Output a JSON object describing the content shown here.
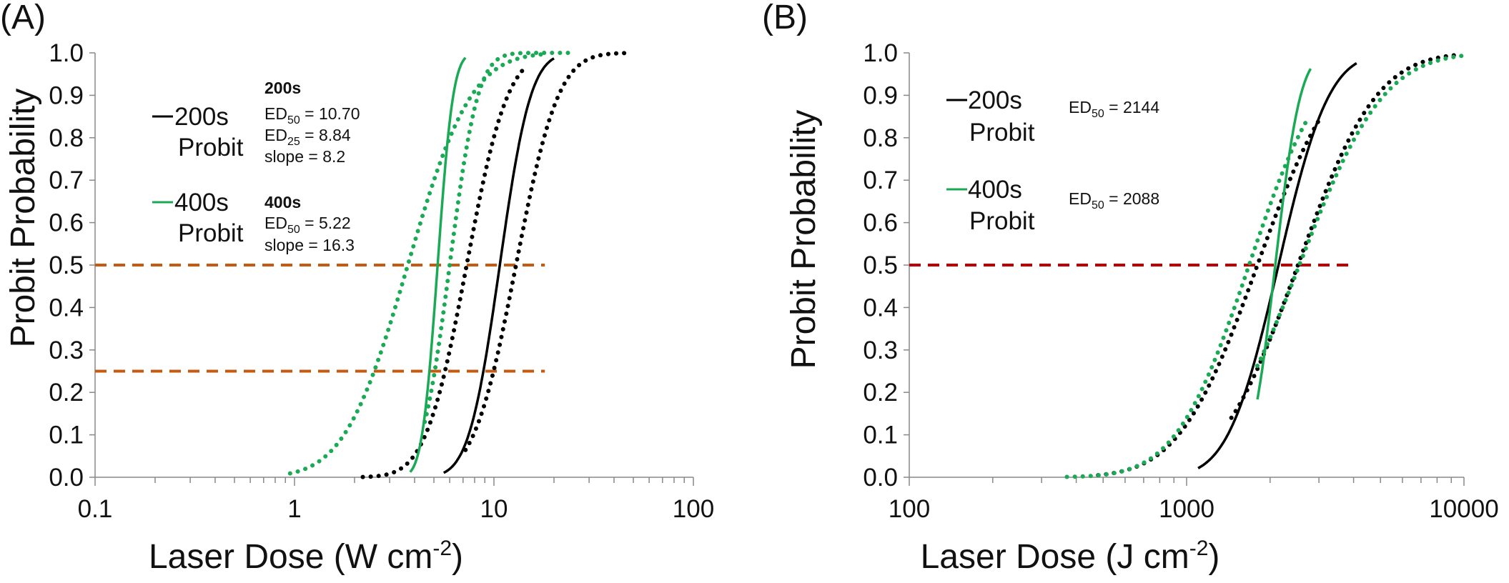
{
  "chart_data": [
    {
      "type": "line",
      "panel_label": "(A)",
      "xscale": "log",
      "xlim": [
        0.1,
        100
      ],
      "ylim": [
        0.0,
        1.0
      ],
      "xticks": [
        "0.1",
        "1",
        "10",
        "100"
      ],
      "yticks": [
        "0.0",
        "0.1",
        "0.2",
        "0.3",
        "0.4",
        "0.5",
        "0.6",
        "0.7",
        "0.8",
        "0.9",
        "1.0"
      ],
      "xlabel": "Laser Dose (W cm",
      "xlabel_sup": "-2",
      "xlabel_end": ")",
      "ylabel": "Probit Probability",
      "legend": [
        {
          "label": "200s",
          "label2": "Probit",
          "color": "#000000"
        },
        {
          "label": "400s",
          "label2": "Probit",
          "color": "#1aaa55"
        }
      ],
      "stats": {
        "group200": {
          "title": "200s",
          "ed50": {
            "pre": "ED",
            "sub": "50",
            "post": " = 10.70"
          },
          "ed25": {
            "pre": "ED",
            "sub": "25",
            "post": " =   8.84"
          },
          "slope": "slope =   8.2"
        },
        "group400": {
          "title": "400s",
          "ed50": {
            "pre": "ED",
            "sub": "50",
            "post": " =  5.22"
          },
          "slope": "slope = 16.3"
        }
      },
      "reference_lines": [
        {
          "y": 0.5,
          "x_end": 18,
          "color": "#c55a11",
          "style": "dashed"
        },
        {
          "y": 0.25,
          "x_end": 18,
          "color": "#c55a11",
          "style": "dashed"
        }
      ],
      "series": [
        {
          "name": "200s Probit",
          "color": "#000000",
          "style": "solid",
          "center": 10.7,
          "slope": 8.2,
          "x_start": 5.6,
          "x_end": 20.0
        },
        {
          "name": "200s lower CI",
          "color": "#000000",
          "style": "dotted",
          "center": 7.3,
          "slope": 6.2,
          "x_start": 2.2,
          "x_end": 14.5
        },
        {
          "name": "200s upper CI",
          "color": "#000000",
          "style": "dotted",
          "center": 12.9,
          "slope": 6.0,
          "x_start": 7.2,
          "x_end": 48.0
        },
        {
          "name": "400s Probit",
          "color": "#1aaa55",
          "style": "solid",
          "center": 5.22,
          "slope": 16.3,
          "x_start": 3.8,
          "x_end": 7.2
        },
        {
          "name": "400s lower CI",
          "color": "#1aaa55",
          "style": "dotted",
          "center": 3.7,
          "slope": 4.0,
          "x_start": 0.95,
          "x_end": 17.5
        },
        {
          "name": "400s upper CI",
          "color": "#1aaa55",
          "style": "dotted",
          "center": 6.0,
          "slope": 9.0,
          "x_start": 4.5,
          "x_end": 24.0
        }
      ]
    },
    {
      "type": "line",
      "panel_label": "(B)",
      "xscale": "log",
      "xlim": [
        100,
        10000
      ],
      "ylim": [
        0.0,
        1.0
      ],
      "xticks": [
        "100",
        "1000",
        "10000"
      ],
      "yticks": [
        "0.0",
        "0.1",
        "0.2",
        "0.3",
        "0.4",
        "0.5",
        "0.6",
        "0.7",
        "0.8",
        "0.9",
        "1.0"
      ],
      "xlabel": "Laser Dose (J cm",
      "xlabel_sup": "-2",
      "xlabel_end": ")",
      "ylabel": "Probit Probability",
      "legend": [
        {
          "label": "200s",
          "label2": "Probit",
          "color": "#000000"
        },
        {
          "label": "400s",
          "label2": "Probit",
          "color": "#1aaa55"
        }
      ],
      "stats": {
        "group200": {
          "ed50": {
            "pre": "ED",
            "sub": "50",
            "post": " = 2144"
          }
        },
        "group400": {
          "ed50": {
            "pre": "ED",
            "sub": "50",
            "post": " = 2088"
          }
        }
      },
      "reference_lines": [
        {
          "y": 0.5,
          "x_end": 4000,
          "color": "#c00000",
          "style": "dashed"
        }
      ],
      "series": [
        {
          "name": "200s Probit",
          "color": "#000000",
          "style": "solid",
          "center": 2144,
          "slope": 7.0,
          "x_start": 1100,
          "x_end": 4100
        },
        {
          "name": "200s lower CI",
          "color": "#000000",
          "style": "dotted",
          "center": 1800,
          "slope": 4.5,
          "x_start": 480,
          "x_end": 3000
        },
        {
          "name": "200s upper CI",
          "color": "#000000",
          "style": "dotted",
          "center": 2520,
          "slope": 4.5,
          "x_start": 1450,
          "x_end": 9500
        },
        {
          "name": "400s Probit",
          "color": "#1aaa55",
          "style": "solid",
          "center": 2088,
          "slope": 14.0,
          "x_start": 1800,
          "x_end": 2800
        },
        {
          "name": "400s lower CI",
          "color": "#1aaa55",
          "style": "dotted",
          "center": 1680,
          "slope": 4.8,
          "x_start": 370,
          "x_end": 2700
        },
        {
          "name": "400s upper CI",
          "color": "#1aaa55",
          "style": "dotted",
          "center": 2550,
          "slope": 4.2,
          "x_start": 1800,
          "x_end": 10000
        }
      ]
    }
  ]
}
